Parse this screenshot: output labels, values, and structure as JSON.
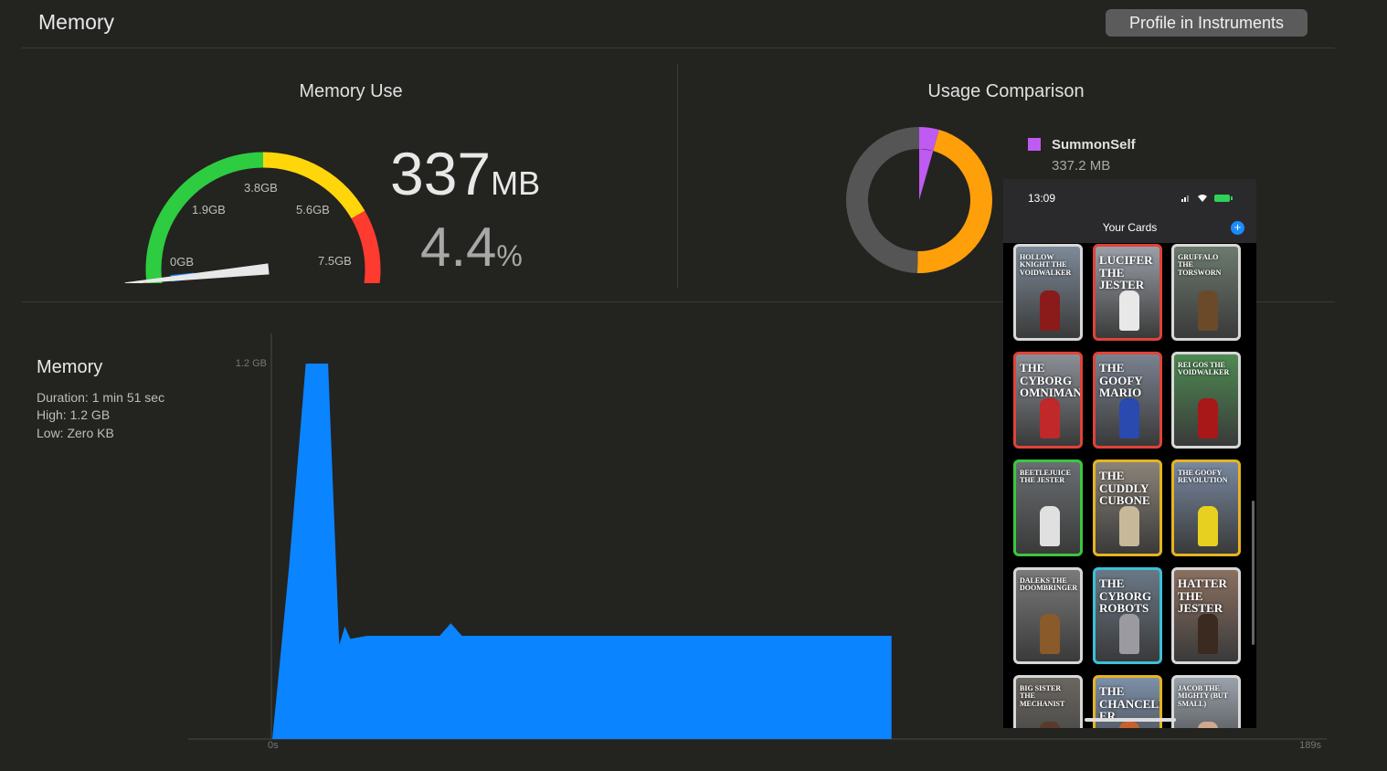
{
  "header": {
    "title": "Memory",
    "profile_button": "Profile in Instruments"
  },
  "memory_use": {
    "title": "Memory Use",
    "value": "337",
    "unit": "MB",
    "percent": "4.4",
    "percent_unit": "%",
    "gauge_labels": [
      "0GB",
      "1.9GB",
      "3.8GB",
      "5.6GB",
      "7.5GB"
    ],
    "gauge_fraction": 0.044,
    "colors": {
      "green": "#2ecc40",
      "yellow": "#ffd60a",
      "red": "#ff3b30",
      "needle_marker": "#1a8cff"
    }
  },
  "usage_comparison": {
    "title": "Usage Comparison",
    "legend_name": "SummonSelf",
    "legend_value": "337.2 MB",
    "slices": [
      {
        "fraction": 0.044,
        "color": "#bf5af2"
      },
      {
        "fraction": 0.46,
        "color": "#ff9f0a"
      },
      {
        "fraction": 0.496,
        "color": "#555555"
      }
    ]
  },
  "memory_chart": {
    "title": "Memory",
    "duration": "Duration: 1 min 51 sec",
    "high": "High: 1.2 GB",
    "low": "Low: Zero KB",
    "chart_data": {
      "type": "area",
      "color": "#0a84ff",
      "x_unit": "s",
      "x_start_label": "0s",
      "x_end_label": "189s",
      "y_max_label": "1.2 GB",
      "ylim": [
        0,
        1.2
      ],
      "xlim": [
        0,
        189
      ],
      "x": [
        0,
        1,
        3,
        6,
        10,
        11,
        12,
        13,
        14,
        17,
        30,
        32,
        34,
        111
      ],
      "y": [
        0,
        0.18,
        0.55,
        1.2,
        1.2,
        0.75,
        0.3,
        0.36,
        0.32,
        0.33,
        0.33,
        0.37,
        0.33,
        0.33
      ]
    }
  },
  "phone": {
    "time": "13:09",
    "title": "Your Cards",
    "plus": "+",
    "cards": [
      {
        "text": "HOLLOW KNIGHT THE VOIDWALKER",
        "border": "#d8d8d8",
        "bg": "#7d8a98",
        "fig": "#8b1a1a"
      },
      {
        "text": "LUCIFER THE JESTER",
        "border": "#e0433a",
        "bg": "#9aa0a8",
        "fig": "#e8e8e8"
      },
      {
        "text": "GRUFFALO THE TORSWORN",
        "border": "#d8d8d8",
        "bg": "#6c7a6e",
        "fig": "#6b4a2a"
      },
      {
        "text": "THE CYBORG OMNIMAN",
        "border": "#e0433a",
        "bg": "#8a8f96",
        "fig": "#c0282a"
      },
      {
        "text": "THE GOOFY MARIO",
        "border": "#e0433a",
        "bg": "#7a8290",
        "fig": "#2a4ab0"
      },
      {
        "text": "REI GOS THE VOIDWALKER",
        "border": "#d8d8d8",
        "bg": "#4e8a52",
        "fig": "#a81818"
      },
      {
        "text": "BEETLEJUICE THE JESTER",
        "border": "#3cc640",
        "bg": "#6a6e72",
        "fig": "#e0e0e0"
      },
      {
        "text": "THE CUDDLY CUBONE",
        "border": "#e6b422",
        "bg": "#8a8378",
        "fig": "#c8b89a"
      },
      {
        "text": "THE GOOFY REVOLUTION",
        "border": "#e6b422",
        "bg": "#7888a0",
        "fig": "#e8d020"
      },
      {
        "text": "DALEKS THE DOOMBRINGER",
        "border": "#d8d8d8",
        "bg": "#7a7a7a",
        "fig": "#8a5a2a"
      },
      {
        "text": "THE CYBORG ROBOTS",
        "border": "#3cc0d8",
        "bg": "#6a7886",
        "fig": "#9a9aa0"
      },
      {
        "text": "HATTER THE JESTER",
        "border": "#d8d8d8",
        "bg": "#8a7060",
        "fig": "#3a2a20"
      },
      {
        "text": "BIG SISTER THE MECHANIST",
        "border": "#d8d8d8",
        "bg": "#6a6660",
        "fig": "#5a3a2a"
      },
      {
        "text": "THE CHANCELLOR ER",
        "border": "#e6b422",
        "bg": "#7d90a8",
        "fig": "#c86030"
      },
      {
        "text": "JACOB THE MIGHTY (BUT SMALL)",
        "border": "#d8d8d8",
        "bg": "#9aa2ac",
        "fig": "#d0a890"
      }
    ]
  }
}
